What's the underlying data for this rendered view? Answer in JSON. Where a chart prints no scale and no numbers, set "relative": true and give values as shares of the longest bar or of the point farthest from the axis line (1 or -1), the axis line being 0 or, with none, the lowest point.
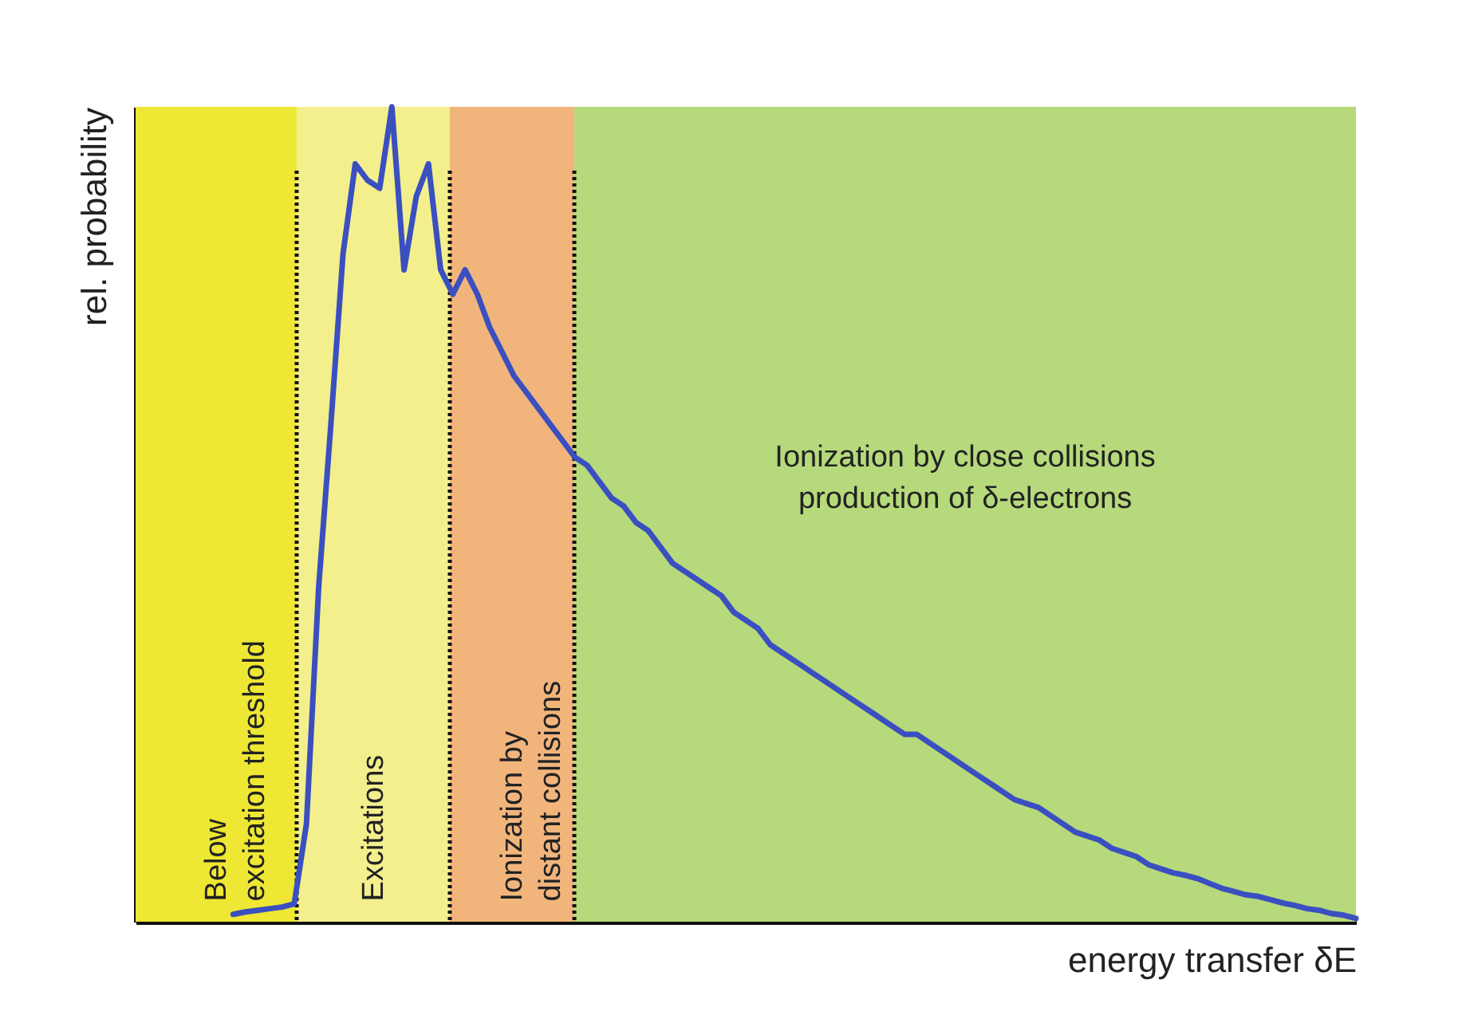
{
  "chart_data": {
    "type": "line",
    "relative": true,
    "xlabel": "energy transfer δE",
    "ylabel": "rel. probability",
    "annotations": [
      "Below\nexcitation threshold",
      "Excitations",
      "Ionization by\ndistant collisions",
      "Ionization by close collisions\nproduction of δ-electrons"
    ],
    "categories": [
      null,
      null,
      null,
      null,
      null,
      null,
      null,
      null,
      null,
      null,
      null,
      null,
      null,
      null,
      null,
      null,
      null,
      null,
      null,
      null,
      null,
      null,
      null,
      null,
      null,
      null,
      null,
      null,
      null,
      null,
      null,
      null,
      null,
      null,
      null,
      null,
      null,
      null,
      null,
      null,
      null,
      null,
      null,
      null,
      null,
      null,
      null,
      null,
      null,
      null,
      null,
      null,
      null,
      null,
      null,
      null,
      null,
      null,
      null,
      null,
      null,
      null,
      null,
      null,
      null,
      null,
      null,
      null,
      null,
      null,
      null,
      null,
      null,
      null,
      null,
      null,
      null,
      null,
      null,
      null,
      null,
      null,
      null,
      null,
      null,
      null,
      null,
      null,
      null,
      null,
      null,
      null,
      null,
      null,
      null,
      null,
      null,
      null,
      null,
      null,
      null
    ],
    "series": [
      {
        "color": "#3a4fc0",
        "values": [
          null,
          null,
          null,
          null,
          null,
          null,
          null,
          null,
          0.009,
          0.012,
          0.014,
          0.016,
          0.018,
          0.022,
          0.12,
          0.41,
          0.61,
          0.82,
          0.93,
          0.91,
          0.9,
          1.0,
          0.8,
          0.89,
          0.93,
          0.8,
          0.77,
          0.8,
          0.77,
          0.73,
          0.7,
          0.67,
          0.65,
          0.63,
          0.61,
          0.59,
          0.57,
          0.56,
          0.54,
          0.52,
          0.51,
          0.49,
          0.48,
          0.46,
          0.44,
          0.43,
          0.42,
          0.41,
          0.4,
          0.38,
          0.37,
          0.36,
          0.34,
          0.33,
          0.32,
          0.31,
          0.3,
          0.29,
          0.28,
          0.27,
          0.26,
          0.25,
          0.24,
          0.23,
          0.23,
          0.22,
          0.21,
          0.2,
          0.19,
          0.18,
          0.17,
          0.16,
          0.15,
          0.145,
          0.14,
          0.13,
          0.12,
          0.11,
          0.105,
          0.1,
          0.09,
          0.085,
          0.08,
          0.07,
          0.065,
          0.06,
          0.057,
          0.053,
          0.047,
          0.041,
          0.037,
          0.033,
          0.031,
          0.027,
          0.023,
          0.02,
          0.016,
          0.014,
          0.01,
          0.008,
          0.004
        ]
      }
    ]
  }
}
